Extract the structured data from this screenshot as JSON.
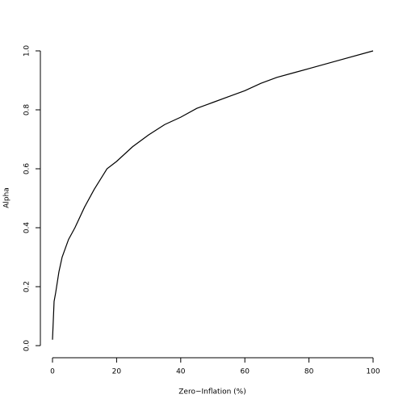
{
  "chart_data": {
    "type": "line",
    "x_label": "Zero−Inflation (%)",
    "y_label": "Alpha",
    "x": [
      0,
      0.5,
      1,
      2,
      3,
      4,
      5,
      7,
      10,
      13,
      17,
      20,
      25,
      30,
      35,
      40,
      45,
      50,
      55,
      60,
      65,
      70,
      75,
      80,
      90,
      100
    ],
    "series": [
      {
        "color": "#000000",
        "values": [
          0.02,
          0.15,
          0.18,
          0.25,
          0.3,
          0.33,
          0.36,
          0.4,
          0.47,
          0.53,
          0.6,
          0.625,
          0.675,
          0.715,
          0.75,
          0.775,
          0.805,
          0.825,
          0.845,
          0.865,
          0.89,
          0.91,
          0.925,
          0.94,
          0.97,
          1.0
        ]
      }
    ],
    "xlim": [
      0,
      100
    ],
    "xticks": [
      0,
      20,
      40,
      60,
      80,
      100
    ],
    "ylim": [
      0,
      1
    ],
    "yticks": [
      {
        "value": 0,
        "label": "0.0"
      },
      0.2,
      0.4,
      0.6,
      0.8,
      {
        "value": 1,
        "label": "1.0"
      }
    ]
  }
}
